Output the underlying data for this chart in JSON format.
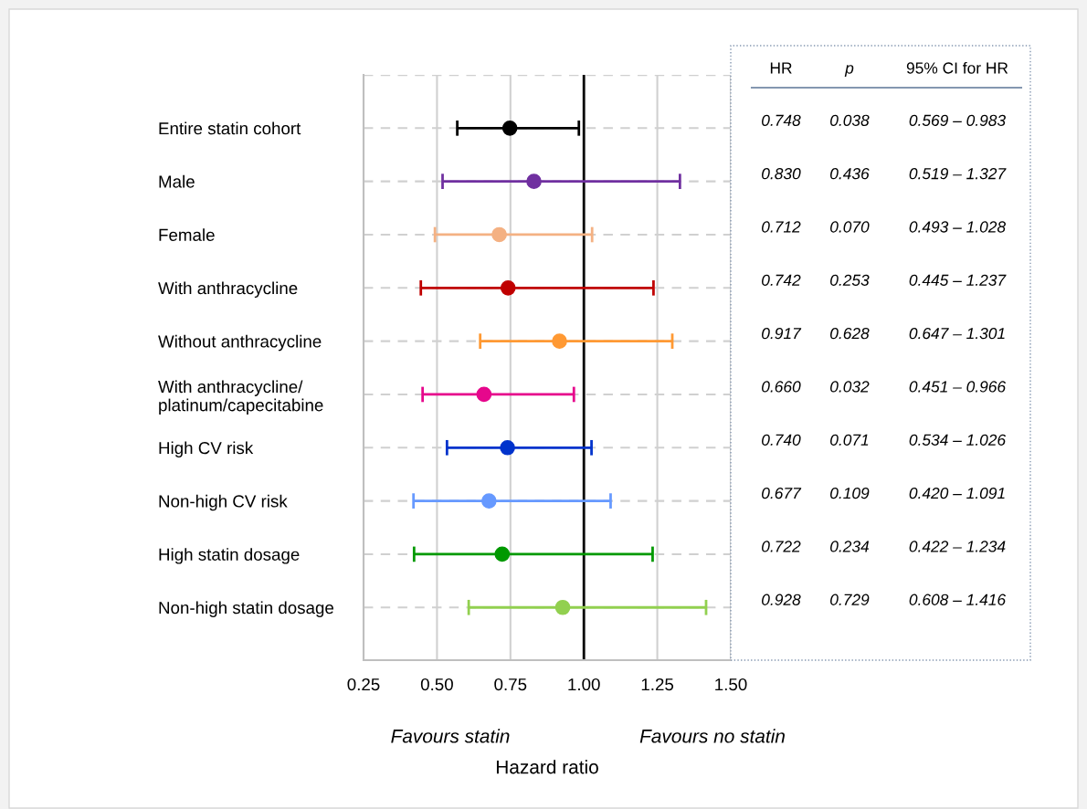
{
  "chart_data": {
    "type": "scatter",
    "orientation": "horizontal",
    "xlabel": "Hazard ratio",
    "categories": [
      "Entire statin cohort",
      "Male",
      "Female",
      "With anthracycline",
      "Without anthracycline",
      "With anthracycline/\nplatinum/capecitabine",
      "High CV risk",
      "Non-high CV risk",
      "High statin dosage",
      "Non-high statin dosage"
    ],
    "values": [
      0.748,
      0.83,
      0.712,
      0.742,
      0.917,
      0.66,
      0.74,
      0.677,
      0.722,
      0.928
    ],
    "errors": [
      [
        0.569,
        0.983
      ],
      [
        0.519,
        1.327
      ],
      [
        0.493,
        1.028
      ],
      [
        0.445,
        1.237
      ],
      [
        0.647,
        1.301
      ],
      [
        0.451,
        0.966
      ],
      [
        0.534,
        1.026
      ],
      [
        0.42,
        1.091
      ],
      [
        0.422,
        1.234
      ],
      [
        0.608,
        1.416
      ]
    ],
    "colors": [
      "#000000",
      "#7030a0",
      "#f4b183",
      "#c00000",
      "#ff9933",
      "#e6078c",
      "#0033cc",
      "#6699ff",
      "#009900",
      "#92d050"
    ],
    "value_labels": [
      "0.748",
      "0.830",
      "0.712",
      "0.742",
      "0.917",
      "0.660",
      "0.740",
      "0.677",
      "0.722",
      "0.928"
    ],
    "marker": "circle",
    "xlim": [
      0.25,
      1.5
    ],
    "xticks": [
      {
        "value": 0.25,
        "label": "0.25"
      },
      {
        "value": 0.5,
        "label": "0.50"
      },
      {
        "value": 0.75,
        "label": "0.75"
      },
      {
        "value": 1.0,
        "label": "1.00"
      },
      {
        "value": 1.25,
        "label": "1.25"
      },
      {
        "value": 1.5,
        "label": "1.50"
      }
    ],
    "grid": true,
    "ref_lines": [
      {
        "axis": "x",
        "value": 1.0,
        "color": "#000000"
      }
    ],
    "annotations": [
      "Favours statin",
      "Favours no statin",
      "HR",
      "p",
      "95% CI for HR",
      "0.038",
      "0.569 – 0.983",
      "0.436",
      "0.519 – 1.327",
      "0.070",
      "0.493 – 1.028",
      "0.253",
      "0.445 – 1.237",
      "0.628",
      "0.647 – 1.301",
      "0.032",
      "0.451 – 0.966",
      "0.071",
      "0.534 – 1.026",
      "0.109",
      "0.420 – 1.091",
      "0.234",
      "0.422 – 1.234",
      "0.729",
      "0.608 – 1.416"
    ]
  }
}
